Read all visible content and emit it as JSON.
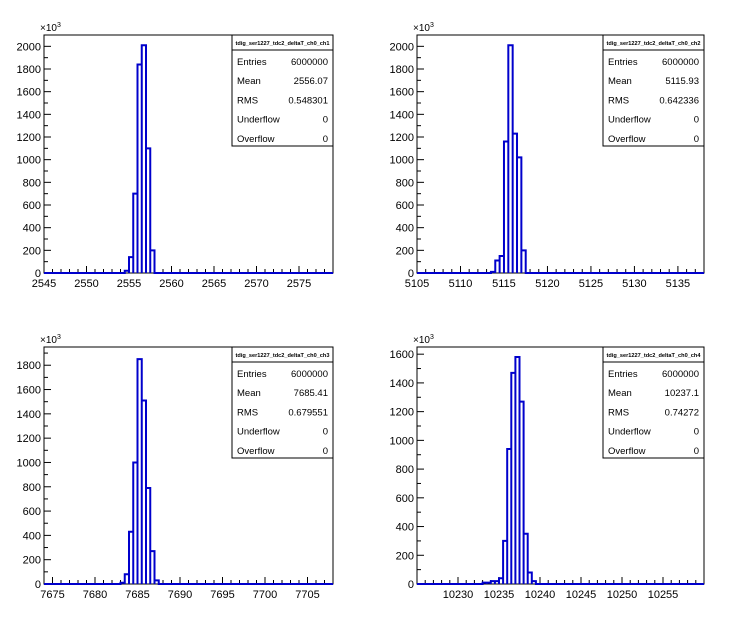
{
  "chart_data": [
    {
      "type": "histogram",
      "title": "tdig_ser1227_tdc2_deltaT_ch0_ch1",
      "y_multiplier": "×10^3",
      "xlim": [
        2545,
        2579
      ],
      "ylim": [
        0,
        2100
      ],
      "x_ticks": [
        2545,
        2550,
        2555,
        2560,
        2565,
        2570,
        2575
      ],
      "y_ticks": [
        0,
        200,
        400,
        600,
        800,
        1000,
        1200,
        1400,
        1600,
        1800,
        2000
      ],
      "bin_width": 0.5,
      "bins": [
        {
          "x": 2554.5,
          "y": 20
        },
        {
          "x": 2555.0,
          "y": 140
        },
        {
          "x": 2555.5,
          "y": 700
        },
        {
          "x": 2556.0,
          "y": 1840
        },
        {
          "x": 2556.5,
          "y": 2010
        },
        {
          "x": 2557.0,
          "y": 1100
        },
        {
          "x": 2557.5,
          "y": 200
        }
      ],
      "stats": [
        {
          "label": "Entries",
          "value": "6000000"
        },
        {
          "label": "Mean",
          "value": "2556.07"
        },
        {
          "label": "RMS",
          "value": "0.548301"
        },
        {
          "label": "Underflow",
          "value": "0"
        },
        {
          "label": "Overflow",
          "value": "0"
        }
      ]
    },
    {
      "type": "histogram",
      "title": "tdig_ser1227_tdc2_deltaT_ch0_ch2",
      "y_multiplier": "×10^3",
      "xlim": [
        5105,
        5138
      ],
      "ylim": [
        0,
        2100
      ],
      "x_ticks": [
        5105,
        5110,
        5115,
        5120,
        5125,
        5130,
        5135
      ],
      "y_ticks": [
        0,
        200,
        400,
        600,
        800,
        1000,
        1200,
        1400,
        1600,
        1800,
        2000
      ],
      "bin_width": 0.5,
      "bins": [
        {
          "x": 5113.5,
          "y": 10
        },
        {
          "x": 5114.0,
          "y": 110
        },
        {
          "x": 5114.5,
          "y": 150
        },
        {
          "x": 5115.0,
          "y": 1160
        },
        {
          "x": 5115.5,
          "y": 2010
        },
        {
          "x": 5116.0,
          "y": 1230
        },
        {
          "x": 5116.5,
          "y": 1020
        },
        {
          "x": 5117.0,
          "y": 200
        }
      ],
      "stats": [
        {
          "label": "Entries",
          "value": "6000000"
        },
        {
          "label": "Mean",
          "value": "5115.93"
        },
        {
          "label": "RMS",
          "value": "0.642336"
        },
        {
          "label": "Underflow",
          "value": "0"
        },
        {
          "label": "Overflow",
          "value": "0"
        }
      ]
    },
    {
      "type": "histogram",
      "title": "tdig_ser1227_tdc2_deltaT_ch0_ch3",
      "y_multiplier": "×10^3",
      "xlim": [
        7674,
        7708
      ],
      "ylim": [
        0,
        1950
      ],
      "x_ticks": [
        7675,
        7680,
        7685,
        7690,
        7695,
        7700,
        7705
      ],
      "y_ticks": [
        0,
        200,
        400,
        600,
        800,
        1000,
        1200,
        1400,
        1600,
        1800
      ],
      "bin_width": 0.5,
      "bins": [
        {
          "x": 7683.0,
          "y": 10
        },
        {
          "x": 7683.5,
          "y": 80
        },
        {
          "x": 7684.0,
          "y": 430
        },
        {
          "x": 7684.5,
          "y": 1000
        },
        {
          "x": 7685.0,
          "y": 1850
        },
        {
          "x": 7685.5,
          "y": 1510
        },
        {
          "x": 7686.0,
          "y": 790
        },
        {
          "x": 7686.5,
          "y": 270
        },
        {
          "x": 7687.0,
          "y": 30
        }
      ],
      "stats": [
        {
          "label": "Entries",
          "value": "6000000"
        },
        {
          "label": "Mean",
          "value": "7685.41"
        },
        {
          "label": "RMS",
          "value": "0.679551"
        },
        {
          "label": "Underflow",
          "value": "0"
        },
        {
          "label": "Overflow",
          "value": "0"
        }
      ]
    },
    {
      "type": "histogram",
      "title": "tdig_ser1227_tdc2_deltaT_ch0_ch4",
      "y_multiplier": "×10^3",
      "xlim": [
        10225,
        10260
      ],
      "ylim": [
        0,
        1650
      ],
      "x_ticks": [
        10230,
        10235,
        10240,
        10245,
        10250,
        10255
      ],
      "y_ticks": [
        0,
        200,
        400,
        600,
        800,
        1000,
        1200,
        1400,
        1600
      ],
      "bin_width": 0.5,
      "bins": [
        {
          "x": 10233.0,
          "y": 10
        },
        {
          "x": 10233.5,
          "y": 10
        },
        {
          "x": 10234.0,
          "y": 20
        },
        {
          "x": 10234.5,
          "y": 20
        },
        {
          "x": 10235.0,
          "y": 40
        },
        {
          "x": 10235.5,
          "y": 300
        },
        {
          "x": 10236.0,
          "y": 940
        },
        {
          "x": 10236.5,
          "y": 1470
        },
        {
          "x": 10237.0,
          "y": 1580
        },
        {
          "x": 10237.5,
          "y": 1270
        },
        {
          "x": 10238.0,
          "y": 350
        },
        {
          "x": 10238.5,
          "y": 80
        },
        {
          "x": 10239.0,
          "y": 20
        }
      ],
      "stats": [
        {
          "label": "Entries",
          "value": "6000000"
        },
        {
          "label": "Mean",
          "value": "10237.1"
        },
        {
          "label": "RMS",
          "value": "0.74272"
        },
        {
          "label": "Underflow",
          "value": "0"
        },
        {
          "label": "Overflow",
          "value": "0"
        }
      ]
    }
  ]
}
